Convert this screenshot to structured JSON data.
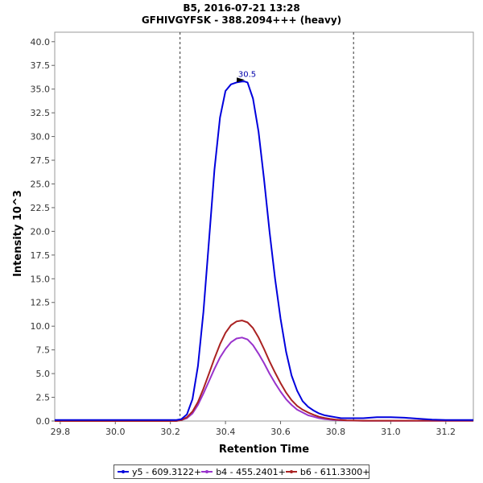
{
  "chart_data": {
    "type": "line",
    "title": "B5, 2016-07-21 13:28",
    "subtitle": "GFHIVGYFSK - 388.2094+++ (heavy)",
    "xlabel": "Retention Time",
    "ylabel": "Intensity 10^3",
    "xlim": [
      29.78,
      31.3
    ],
    "ylim": [
      0,
      41
    ],
    "x_ticks": [
      "29.8",
      "30.0",
      "30.2",
      "30.4",
      "30.6",
      "30.8",
      "31.0",
      "31.2"
    ],
    "y_ticks": [
      "0.0",
      "2.5",
      "5.0",
      "7.5",
      "10.0",
      "12.5",
      "15.0",
      "17.5",
      "20.0",
      "22.5",
      "25.0",
      "27.5",
      "30.0",
      "32.5",
      "35.0",
      "37.5",
      "40.0"
    ],
    "boundary_lines_x": [
      30.235,
      30.865
    ],
    "peak_annotation": {
      "label": "30.5",
      "x": 30.47,
      "y": 35.8
    },
    "series": [
      {
        "name": "y5 - 609.3122+",
        "color": "#0000dd",
        "x": [
          29.78,
          30.2,
          30.22,
          30.24,
          30.26,
          30.28,
          30.3,
          30.32,
          30.34,
          30.36,
          30.38,
          30.4,
          30.42,
          30.44,
          30.46,
          30.47,
          30.48,
          30.5,
          30.52,
          30.54,
          30.56,
          30.58,
          30.6,
          30.62,
          30.64,
          30.66,
          30.68,
          30.7,
          30.72,
          30.74,
          30.76,
          30.78,
          30.8,
          30.82,
          30.84,
          30.86,
          30.88,
          30.9,
          30.95,
          31.0,
          31.05,
          31.1,
          31.15,
          31.2,
          31.3
        ],
        "values": [
          0.1,
          0.1,
          0.1,
          0.2,
          0.7,
          2.3,
          5.8,
          11.5,
          19.0,
          26.5,
          32.0,
          34.8,
          35.5,
          35.7,
          35.8,
          35.8,
          35.7,
          34.0,
          30.5,
          25.5,
          20.0,
          15.0,
          10.8,
          7.3,
          4.8,
          3.2,
          2.1,
          1.5,
          1.1,
          0.8,
          0.6,
          0.5,
          0.4,
          0.3,
          0.3,
          0.3,
          0.3,
          0.3,
          0.4,
          0.4,
          0.35,
          0.25,
          0.15,
          0.1,
          0.1
        ]
      },
      {
        "name": "b4 - 455.2401+",
        "color": "#9933cc",
        "x": [
          29.78,
          30.22,
          30.24,
          30.26,
          30.28,
          30.3,
          30.32,
          30.34,
          30.36,
          30.38,
          30.4,
          30.42,
          30.44,
          30.46,
          30.48,
          30.5,
          30.52,
          30.54,
          30.56,
          30.58,
          30.6,
          30.62,
          30.64,
          30.66,
          30.68,
          30.7,
          30.72,
          30.74,
          30.76,
          30.78,
          30.8,
          30.82,
          30.84,
          30.86,
          30.88,
          30.9,
          31.3
        ],
        "values": [
          0.0,
          0.0,
          0.1,
          0.3,
          0.8,
          1.7,
          2.9,
          4.2,
          5.5,
          6.7,
          7.6,
          8.3,
          8.7,
          8.8,
          8.6,
          8.0,
          7.1,
          6.1,
          5.0,
          4.0,
          3.1,
          2.3,
          1.7,
          1.2,
          0.9,
          0.6,
          0.45,
          0.3,
          0.2,
          0.15,
          0.1,
          0.08,
          0.05,
          0.04,
          0.03,
          0.02,
          0.02
        ]
      },
      {
        "name": "b6 - 611.3300+",
        "color": "#aa2222",
        "x": [
          29.78,
          30.22,
          30.24,
          30.26,
          30.28,
          30.3,
          30.32,
          30.34,
          30.36,
          30.38,
          30.4,
          30.42,
          30.44,
          30.46,
          30.48,
          30.5,
          30.52,
          30.54,
          30.56,
          30.58,
          30.6,
          30.62,
          30.64,
          30.66,
          30.68,
          30.7,
          30.72,
          30.74,
          30.76,
          30.78,
          30.8,
          30.82,
          30.84,
          30.86,
          30.88,
          30.9,
          31.3
        ],
        "values": [
          0.0,
          0.0,
          0.1,
          0.4,
          1.0,
          2.0,
          3.4,
          5.0,
          6.6,
          8.1,
          9.3,
          10.1,
          10.5,
          10.6,
          10.4,
          9.8,
          8.8,
          7.6,
          6.3,
          5.1,
          4.0,
          3.0,
          2.2,
          1.6,
          1.2,
          0.9,
          0.65,
          0.45,
          0.32,
          0.22,
          0.15,
          0.1,
          0.07,
          0.05,
          0.04,
          0.03,
          0.03
        ]
      }
    ]
  }
}
